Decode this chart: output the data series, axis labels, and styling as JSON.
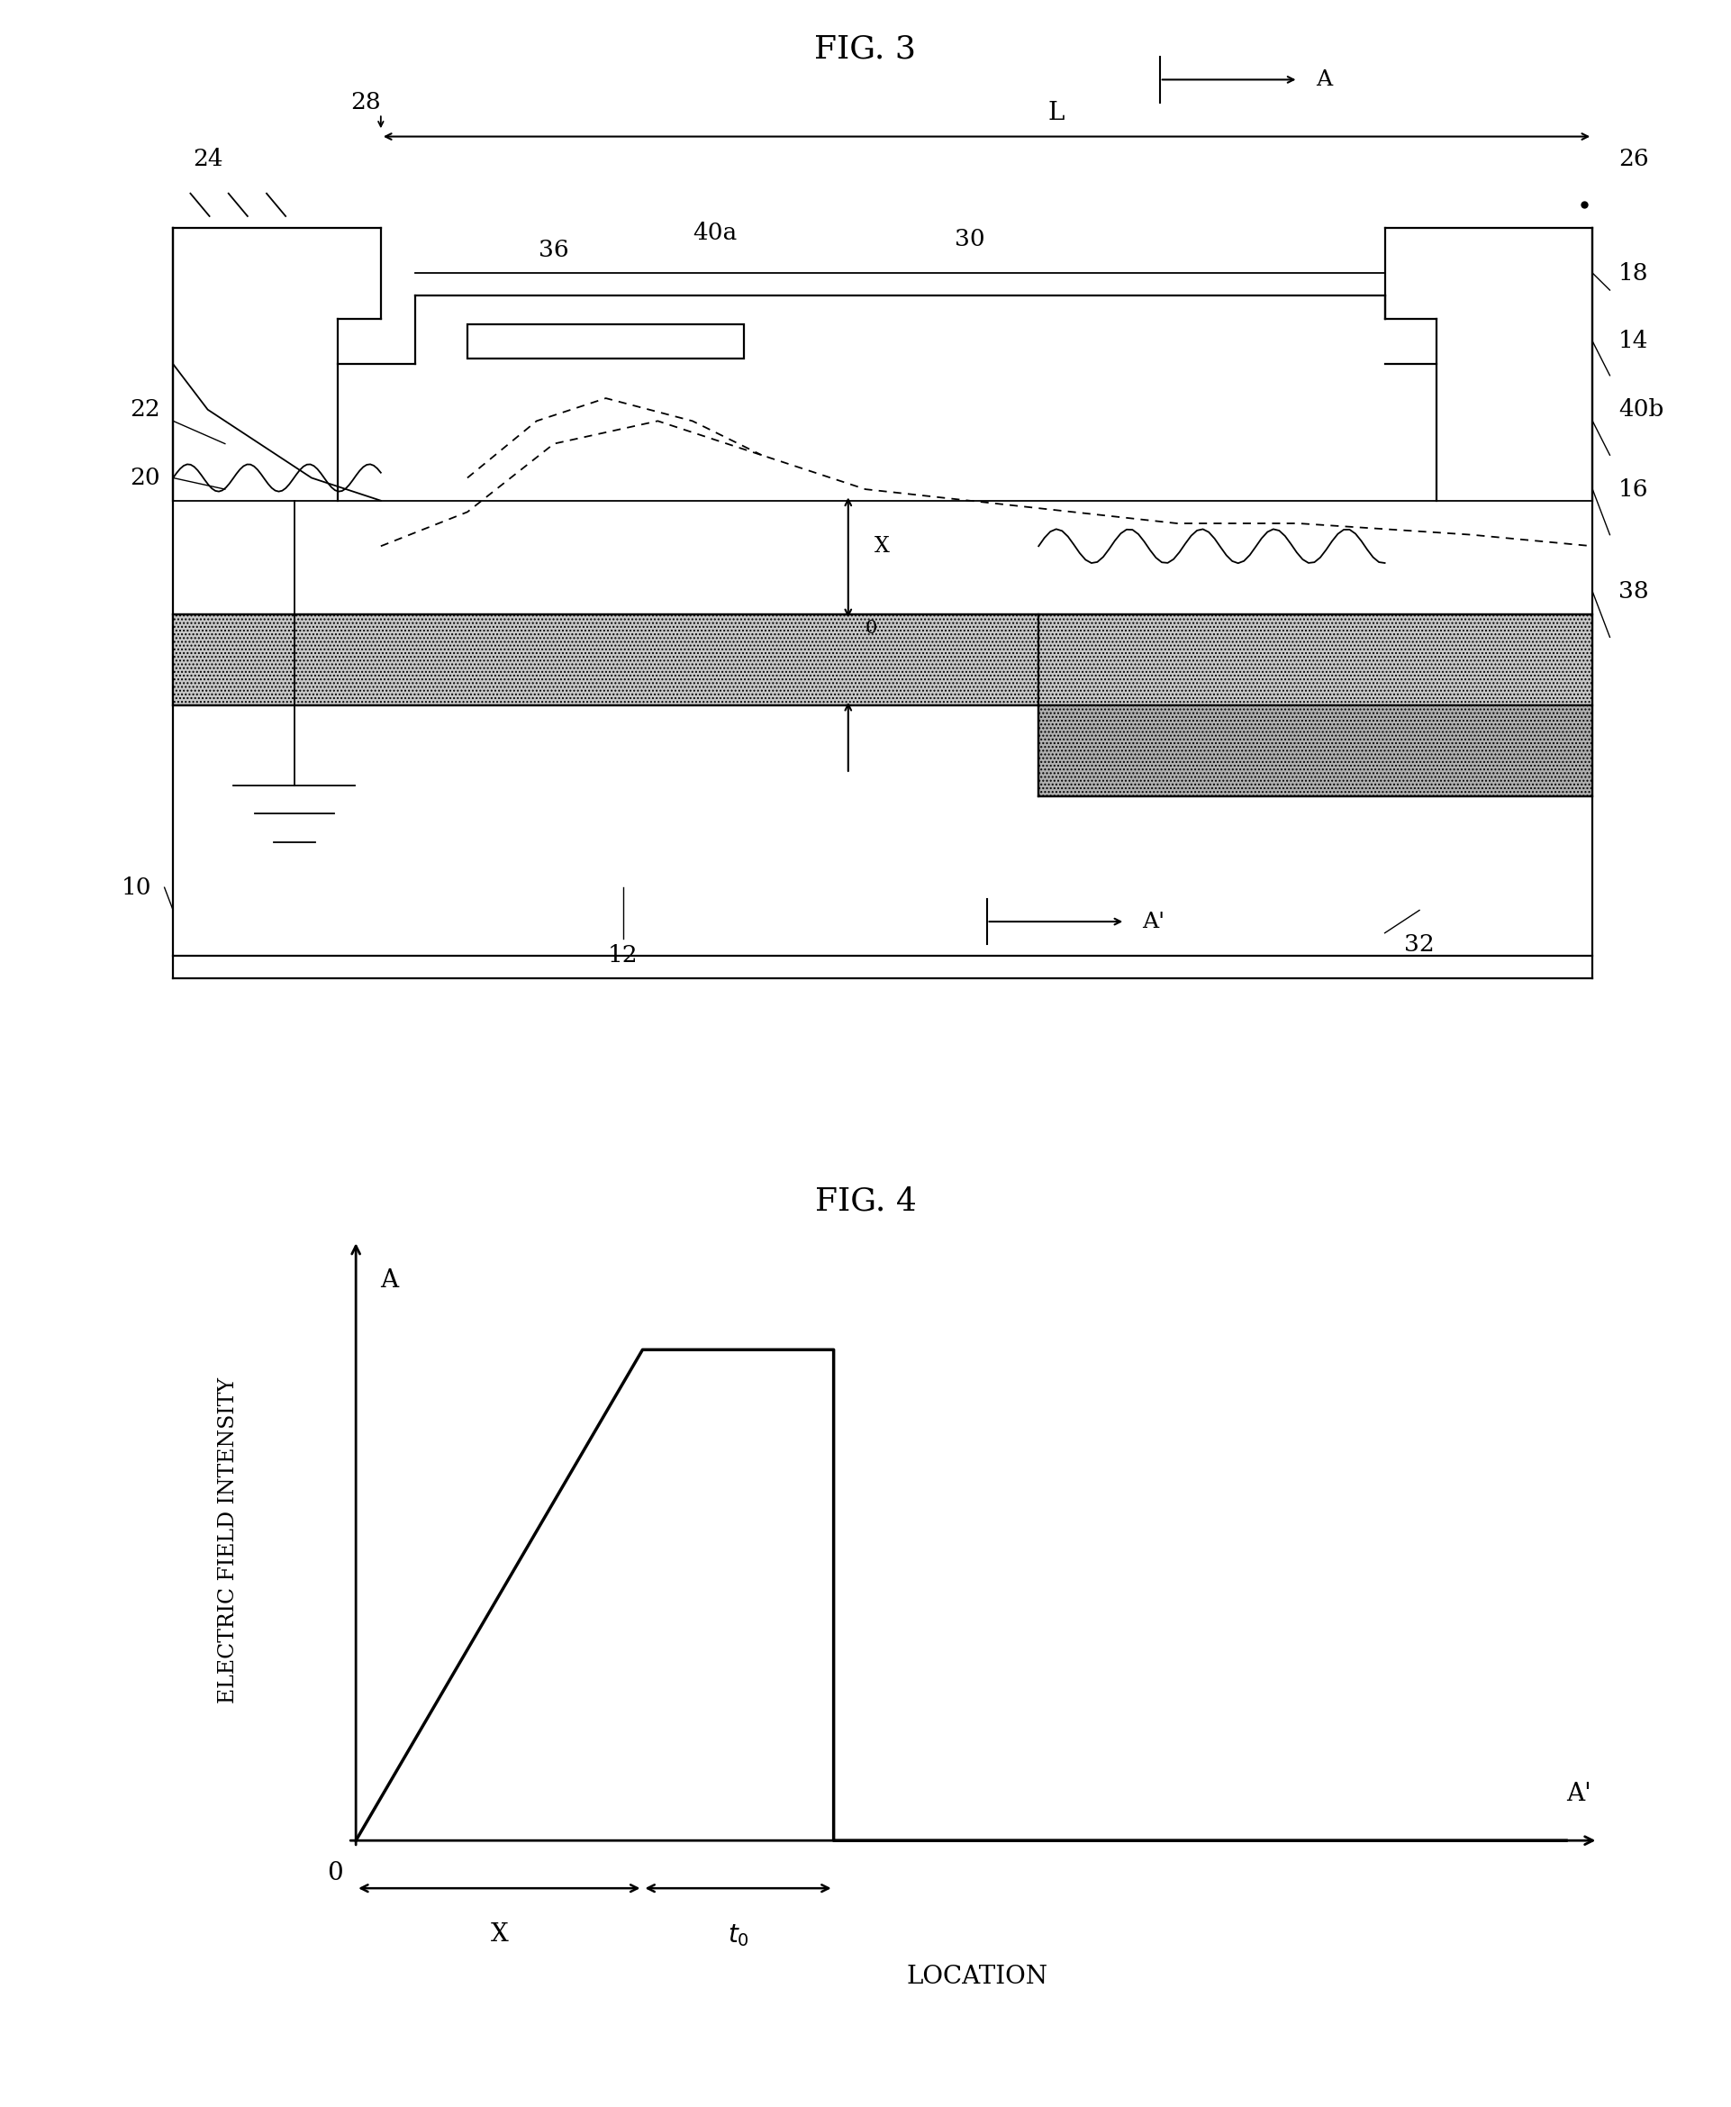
{
  "fig3_title": "FIG. 3",
  "fig4_title": "FIG. 4",
  "fig4_ylabel": "ELECTRIC FIELD INTENSITY",
  "fig4_xlabel": "LOCATION",
  "background_color": "#ffffff"
}
